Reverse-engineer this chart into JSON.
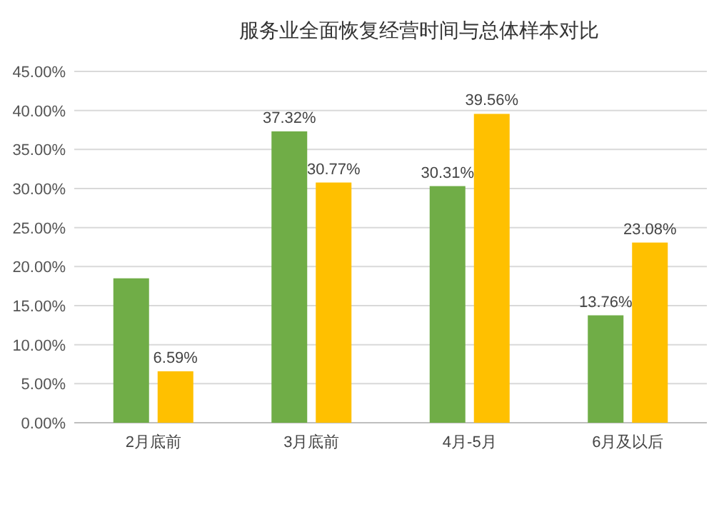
{
  "chart_data": {
    "type": "bar",
    "title": "服务业全面恢复经营时间与总体样本对比",
    "categories": [
      "2月底前",
      "3月底前",
      "4月-5月",
      "6月及以后"
    ],
    "series": [
      {
        "color": "#70ad47",
        "values": [
          18.5,
          37.32,
          30.31,
          13.76
        ],
        "value_labels": [
          null,
          "37.32%",
          "30.31%",
          "13.76%"
        ]
      },
      {
        "color": "#ffc000",
        "values": [
          6.59,
          30.77,
          39.56,
          23.08
        ],
        "value_labels": [
          "6.59%",
          "30.77%",
          "39.56%",
          "23.08%"
        ]
      }
    ],
    "ylim": [
      0,
      45
    ],
    "yticks": [
      {
        "value": 0,
        "label": "0.00%"
      },
      {
        "value": 5,
        "label": "5.00%"
      },
      {
        "value": 10,
        "label": "10.00%"
      },
      {
        "value": 15,
        "label": "15.00%"
      },
      {
        "value": 20,
        "label": "20.00%"
      },
      {
        "value": 25,
        "label": "25.00%"
      },
      {
        "value": 30,
        "label": "30.00%"
      },
      {
        "value": 35,
        "label": "35.00%"
      },
      {
        "value": 40,
        "label": "40.00%"
      },
      {
        "value": 45,
        "label": "45.00%"
      }
    ],
    "grid": "y"
  }
}
